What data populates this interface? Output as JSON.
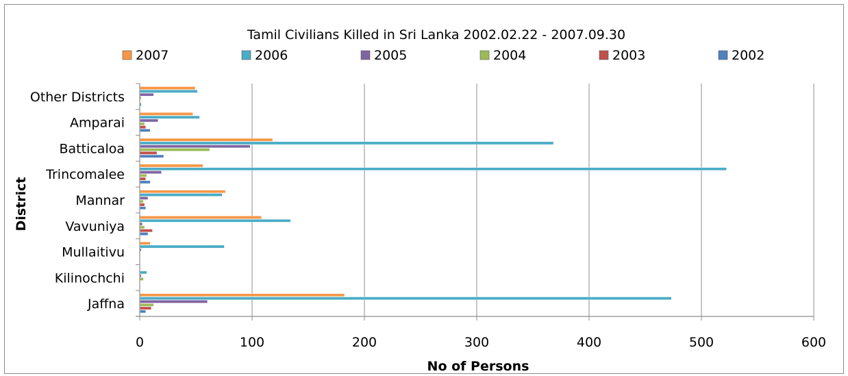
{
  "chart_data": {
    "type": "bar",
    "orientation": "horizontal",
    "title": "Tamil Civilians Killed in Sri Lanka 2002.02.22 - 2007.09.30",
    "xlabel": "No of Persons",
    "ylabel": "District",
    "xlim": [
      0,
      600
    ],
    "xticks": [
      0,
      100,
      200,
      300,
      400,
      500,
      600
    ],
    "grid": "vertical",
    "legend_position": "top",
    "categories": [
      "Jaffna",
      "Kilinochchi",
      "Mullaitivu",
      "Vavuniya",
      "Mannar",
      "Trincomalee",
      "Batticaloa",
      "Amparai",
      "Other Districts"
    ],
    "series": [
      {
        "name": "2002",
        "color": "#4f81bd",
        "values": [
          5,
          0,
          0,
          7,
          5,
          9,
          21,
          9,
          1
        ]
      },
      {
        "name": "2003",
        "color": "#c0504d",
        "values": [
          10,
          0,
          0,
          11,
          4,
          5,
          15,
          5,
          0
        ]
      },
      {
        "name": "2004",
        "color": "#9bbb59",
        "values": [
          12,
          3,
          0,
          4,
          3,
          6,
          62,
          4,
          1
        ]
      },
      {
        "name": "2005",
        "color": "#8064a2",
        "values": [
          60,
          1,
          1,
          2,
          7,
          19,
          98,
          16,
          12
        ]
      },
      {
        "name": "2006",
        "color": "#4bacc6",
        "values": [
          473,
          6,
          75,
          134,
          73,
          522,
          368,
          53,
          51
        ]
      },
      {
        "name": "2007",
        "color": "#f79646",
        "values": [
          182,
          0,
          9,
          108,
          76,
          56,
          118,
          47,
          49
        ]
      }
    ],
    "legend_order": [
      "2007",
      "2006",
      "2005",
      "2004",
      "2003",
      "2002"
    ]
  }
}
